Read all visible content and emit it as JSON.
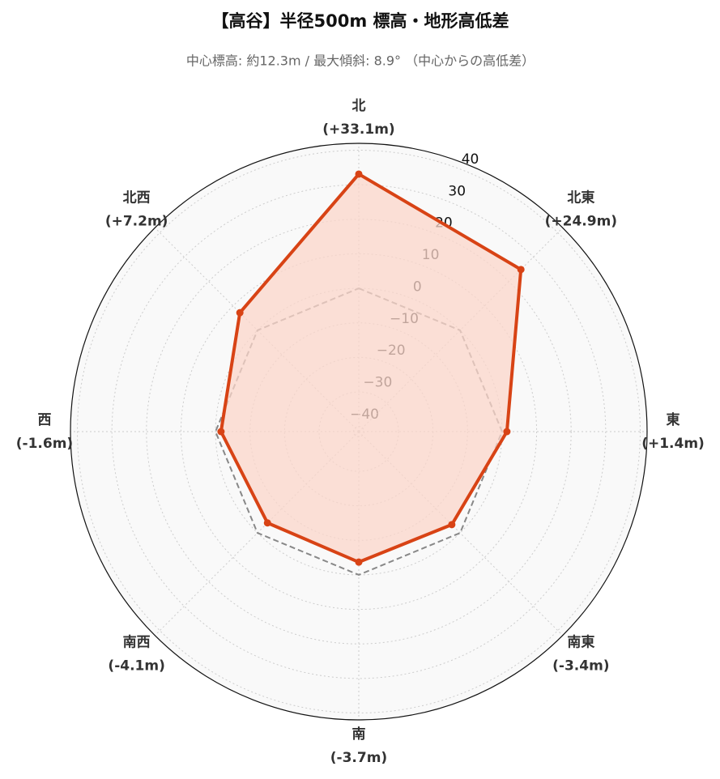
{
  "chart_data": {
    "type": "radar",
    "title": "【高谷】半径500m 標高・地形高低差",
    "subtitle": "中心標高: 約12.3m / 最大傾斜: 8.9° （中心からの高低差）",
    "categories": [
      "北",
      "北東",
      "東",
      "南東",
      "南",
      "南西",
      "西",
      "北西"
    ],
    "values": [
      33.1,
      24.9,
      1.4,
      -3.4,
      -3.7,
      -4.1,
      -1.6,
      7.2
    ],
    "value_labels": [
      "(+33.1m)",
      "(+24.9m)",
      "(+1.4m)",
      "(-3.4m)",
      "(-3.7m)",
      "(-4.1m)",
      "(-1.6m)",
      "(+7.2m)"
    ],
    "color": "#d84315",
    "fill_color": "#fbd5ca",
    "baseline": 0,
    "ylim": [
      -41.5,
      42
    ],
    "yticks": [
      {
        "value": -40,
        "label": "−40"
      },
      {
        "value": -30,
        "label": "−30"
      },
      {
        "value": -20,
        "label": "−20"
      },
      {
        "value": -10,
        "label": "−10"
      },
      0,
      10,
      20,
      30,
      40
    ],
    "grid": true
  }
}
